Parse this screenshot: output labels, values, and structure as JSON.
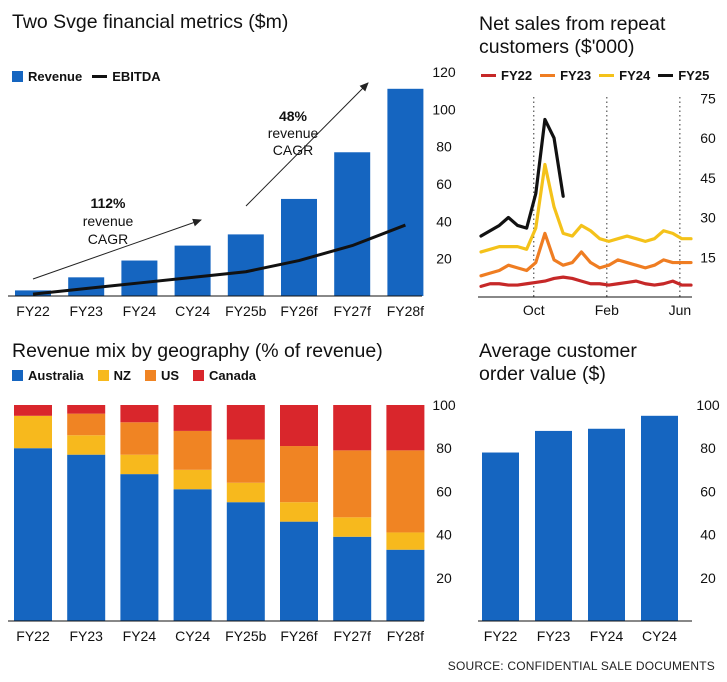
{
  "source": "SOURCE: CONFIDENTIAL SALE DOCUMENTS",
  "colors": {
    "blue": "#1565c0",
    "black": "#111111",
    "fy22": "#c62828",
    "fy23": "#ef7d22",
    "fy24": "#f4c21a",
    "fy25": "#111111",
    "nz": "#f7b91d",
    "us": "#f08423",
    "canada": "#d9262c"
  },
  "panels": {
    "metrics": {
      "title": "Two Svge financial metrics ($m)",
      "legend": [
        "Revenue",
        "EBITDA"
      ],
      "ann1": [
        "112%",
        "revenue",
        "CAGR"
      ],
      "ann2": [
        "48%",
        "revenue",
        "CAGR"
      ]
    },
    "repeat": {
      "title_line1": "Net sales from repeat",
      "title_line2": "customers ($'000)",
      "legend": [
        "FY22",
        "FY23",
        "FY24",
        "FY25"
      ]
    },
    "mix": {
      "title": "Revenue mix by geography (% of revenue)",
      "legend": [
        "Australia",
        "NZ",
        "US",
        "Canada"
      ]
    },
    "aov": {
      "title_line1": "Average customer",
      "title_line2": "order value ($)"
    }
  },
  "chart_data": [
    {
      "id": "metrics",
      "type": "bar",
      "title": "Two Svge financial metrics ($m)",
      "categories": [
        "FY22",
        "FY23",
        "FY24",
        "CY24",
        "FY25b",
        "FY26f",
        "FY27f",
        "FY28f"
      ],
      "series": [
        {
          "name": "Revenue",
          "type": "bar",
          "values": [
            3,
            10,
            19,
            27,
            33,
            52,
            77,
            111
          ]
        },
        {
          "name": "EBITDA",
          "type": "line",
          "values": [
            1,
            4,
            7,
            10,
            13,
            19,
            27,
            38
          ]
        }
      ],
      "ylim": [
        0,
        120
      ],
      "yticks": [
        20,
        40,
        60,
        80,
        100,
        120
      ],
      "grid": false
    },
    {
      "id": "repeat",
      "type": "line",
      "title": "Net sales from repeat customers ($'000)",
      "x_ticks": [
        "Oct",
        "Feb",
        "Jun"
      ],
      "x_range": [
        0,
        46
      ],
      "x_tick_positions": [
        12,
        28,
        44
      ],
      "ylim": [
        0,
        80
      ],
      "yticks": [
        15,
        30,
        45,
        60,
        75
      ],
      "series": [
        {
          "name": "FY22",
          "x": [
            0,
            2,
            4,
            6,
            8,
            10,
            12,
            14,
            16,
            18,
            20,
            22,
            24,
            26,
            28,
            30,
            32,
            34,
            36,
            38,
            40,
            42,
            44,
            46
          ],
          "y": [
            4,
            5,
            5,
            4.5,
            4.5,
            5,
            5.5,
            6,
            7,
            7.5,
            7,
            6,
            5,
            5,
            4.5,
            5,
            5.5,
            6,
            5,
            4.5,
            5,
            6,
            4.5,
            4.5
          ]
        },
        {
          "name": "FY23",
          "x": [
            0,
            2,
            4,
            6,
            8,
            10,
            12,
            14,
            16,
            18,
            20,
            22,
            24,
            26,
            28,
            30,
            32,
            34,
            36,
            38,
            40,
            42,
            44,
            46
          ],
          "y": [
            8,
            9,
            10,
            12,
            11,
            10,
            13,
            24,
            14,
            12,
            13,
            17,
            13,
            11,
            12,
            14,
            13,
            12,
            11,
            12,
            14,
            13,
            13,
            13
          ]
        },
        {
          "name": "FY24",
          "x": [
            0,
            2,
            4,
            6,
            8,
            10,
            12,
            14,
            16,
            18,
            20,
            22,
            24,
            26,
            28,
            30,
            32,
            34,
            36,
            38,
            40,
            42,
            44,
            46
          ],
          "y": [
            17,
            18,
            19,
            19,
            19,
            18,
            26,
            50,
            34,
            24,
            23,
            27,
            25,
            22,
            21,
            22,
            23,
            22,
            21,
            22,
            25,
            24,
            22,
            22
          ]
        },
        {
          "name": "FY25",
          "x": [
            0,
            2,
            4,
            6,
            8,
            10,
            12,
            14,
            16,
            18
          ],
          "y": [
            23,
            25,
            27,
            30,
            27,
            26,
            39,
            67,
            60,
            38
          ]
        }
      ],
      "grid": false
    },
    {
      "id": "mix",
      "type": "bar",
      "stacked": true,
      "title": "Revenue mix by geography (% of revenue)",
      "categories": [
        "FY22",
        "FY23",
        "FY24",
        "CY24",
        "FY25b",
        "FY26f",
        "FY27f",
        "FY28f"
      ],
      "series": [
        {
          "name": "Australia",
          "values": [
            80,
            77,
            68,
            61,
            55,
            46,
            39,
            33
          ]
        },
        {
          "name": "NZ",
          "values": [
            15,
            9,
            9,
            9,
            9,
            9,
            9,
            8
          ]
        },
        {
          "name": "US",
          "values": [
            0,
            10,
            15,
            18,
            20,
            26,
            31,
            38
          ]
        },
        {
          "name": "Canada",
          "values": [
            5,
            4,
            8,
            12,
            16,
            19,
            21,
            21
          ]
        }
      ],
      "ylim": [
        0,
        100
      ],
      "yticks": [
        20,
        40,
        60,
        80,
        100
      ],
      "grid": false
    },
    {
      "id": "aov",
      "type": "bar",
      "title": "Average customer order value ($)",
      "categories": [
        "FY22",
        "FY23",
        "FY24",
        "CY24"
      ],
      "values": [
        78,
        88,
        89,
        95
      ],
      "ylim": [
        0,
        100
      ],
      "yticks": [
        20,
        40,
        60,
        80,
        100
      ],
      "grid": false
    }
  ]
}
